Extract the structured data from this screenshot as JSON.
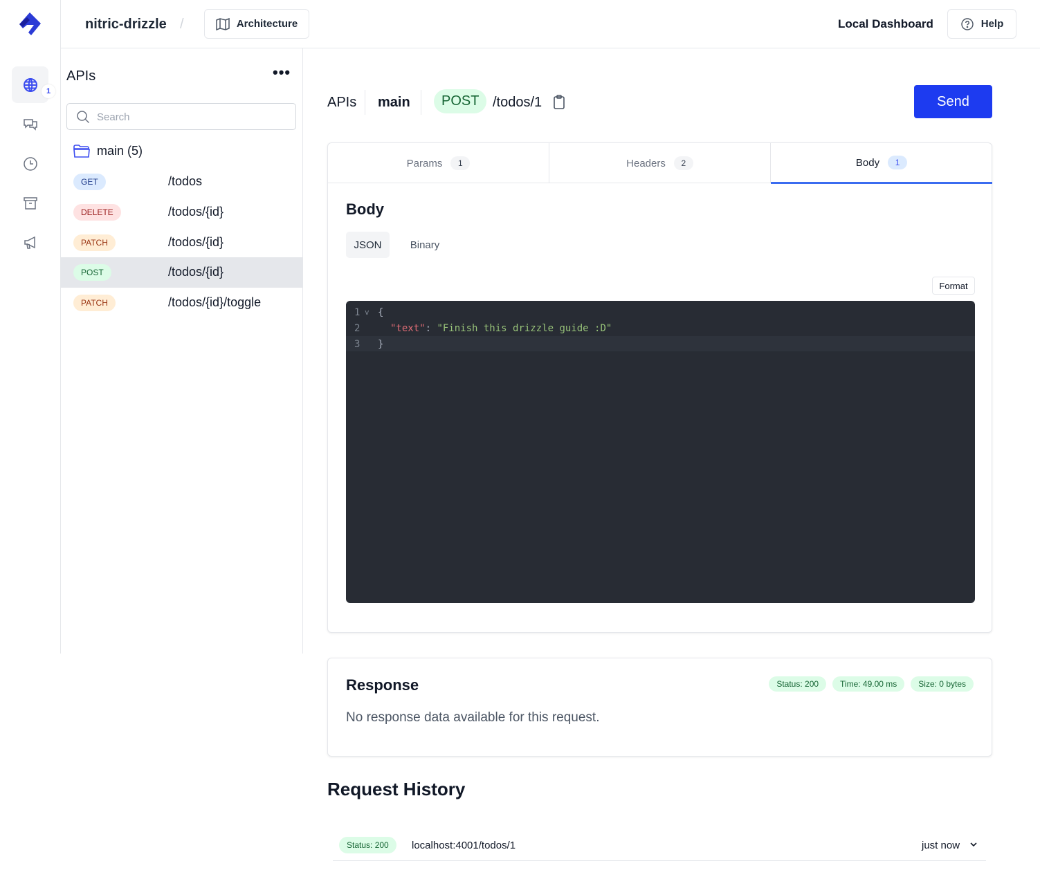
{
  "header": {
    "project": "nitric-drizzle",
    "separator": "/",
    "architecture_label": "Architecture",
    "local_dashboard": "Local Dashboard",
    "help_label": "Help"
  },
  "rail": {
    "apis_badge": "1",
    "items": [
      "globe-icon",
      "chat-icon",
      "clock-icon",
      "archive-icon",
      "megaphone-icon"
    ]
  },
  "sidebar": {
    "title": "APIs",
    "search_placeholder": "Search",
    "group": "main (5)",
    "routes": [
      {
        "method": "GET",
        "path": "/todos"
      },
      {
        "method": "DELETE",
        "path": "/todos/{id}"
      },
      {
        "method": "PATCH",
        "path": "/todos/{id}"
      },
      {
        "method": "POST",
        "path": "/todos/{id}"
      },
      {
        "method": "PATCH",
        "path": "/todos/{id}/toggle"
      }
    ]
  },
  "request": {
    "crumb_apis": "APIs",
    "crumb_api": "main",
    "method": "POST",
    "path": "/todos/1",
    "send_label": "Send"
  },
  "tabs": [
    {
      "label": "Params",
      "count": "1"
    },
    {
      "label": "Headers",
      "count": "2"
    },
    {
      "label": "Body",
      "count": "1"
    }
  ],
  "body": {
    "title": "Body",
    "modes": [
      "JSON",
      "Binary"
    ],
    "format_label": "Format",
    "code": {
      "line_numbers": [
        "1",
        "2",
        "3"
      ],
      "open": "{",
      "key": "\"text\"",
      "colon": ": ",
      "value": "\"Finish this drizzle guide :D\"",
      "close": "}"
    }
  },
  "response": {
    "title": "Response",
    "status": "Status: 200",
    "time": "Time: 49.00 ms",
    "size": "Size: 0 bytes",
    "empty": "No response data available for this request."
  },
  "history": {
    "title": "Request History",
    "items": [
      {
        "status": "Status: 200",
        "url": "localhost:4001/todos/1",
        "when": "just now"
      }
    ]
  },
  "colors": {
    "accent": "#1d3bf0",
    "get": "#dbeafe",
    "delete": "#fee2e2",
    "patch": "#ffedd5",
    "post": "#dcfce7",
    "editor_bg": "#282c34"
  }
}
